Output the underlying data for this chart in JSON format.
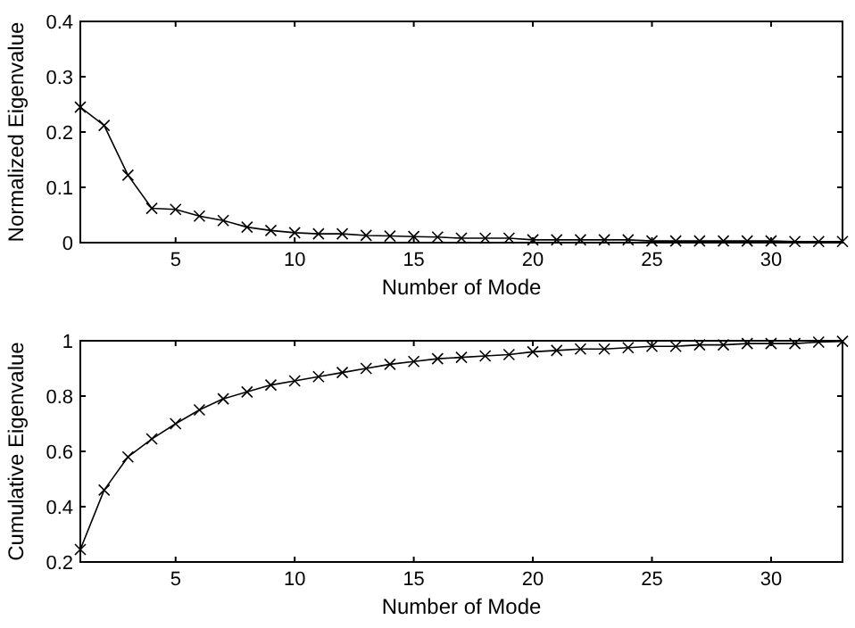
{
  "chart_data": [
    {
      "type": "line",
      "xlabel": "Number of Mode",
      "ylabel": "Normalized Eigenvalue",
      "x": [
        1,
        2,
        3,
        4,
        5,
        6,
        7,
        8,
        9,
        10,
        11,
        12,
        13,
        14,
        15,
        16,
        17,
        18,
        19,
        20,
        21,
        22,
        23,
        24,
        25,
        26,
        27,
        28,
        29,
        30,
        31,
        32,
        33
      ],
      "series": [
        {
          "color": "#000000",
          "values": [
            0.245,
            0.212,
            0.122,
            0.062,
            0.06,
            0.048,
            0.04,
            0.028,
            0.022,
            0.018,
            0.016,
            0.016,
            0.013,
            0.012,
            0.011,
            0.01,
            0.008,
            0.008,
            0.008,
            0.005,
            0.005,
            0.005,
            0.005,
            0.005,
            0.003,
            0.003,
            0.003,
            0.003,
            0.003,
            0.003,
            0.002,
            0.002,
            0.002
          ]
        }
      ],
      "xlim": [
        1,
        33
      ],
      "xticks": [
        5,
        10,
        15,
        20,
        25,
        30
      ],
      "ylim": [
        0,
        0.4
      ],
      "yticks": [
        0,
        0.1,
        0.2,
        0.3,
        0.4
      ],
      "marker": "cross",
      "line_style": "solid"
    },
    {
      "type": "line",
      "xlabel": "Number of Mode",
      "ylabel": "Cumulative Eigenvalue",
      "x": [
        1,
        2,
        3,
        4,
        5,
        6,
        7,
        8,
        9,
        10,
        11,
        12,
        13,
        14,
        15,
        16,
        17,
        18,
        19,
        20,
        21,
        22,
        23,
        24,
        25,
        26,
        27,
        28,
        29,
        30,
        31,
        32,
        33
      ],
      "series": [
        {
          "color": "#000000",
          "values": [
            0.245,
            0.46,
            0.58,
            0.645,
            0.7,
            0.75,
            0.79,
            0.815,
            0.84,
            0.855,
            0.87,
            0.885,
            0.9,
            0.915,
            0.925,
            0.935,
            0.94,
            0.945,
            0.95,
            0.96,
            0.965,
            0.97,
            0.97,
            0.975,
            0.98,
            0.98,
            0.985,
            0.985,
            0.99,
            0.99,
            0.99,
            0.995,
            0.998
          ]
        }
      ],
      "xlim": [
        1,
        33
      ],
      "xticks": [
        5,
        10,
        15,
        20,
        25,
        30
      ],
      "ylim": [
        0.2,
        1
      ],
      "yticks": [
        0.2,
        0.4,
        0.6,
        0.8,
        1
      ],
      "marker": "cross",
      "line_style": "solid"
    }
  ]
}
